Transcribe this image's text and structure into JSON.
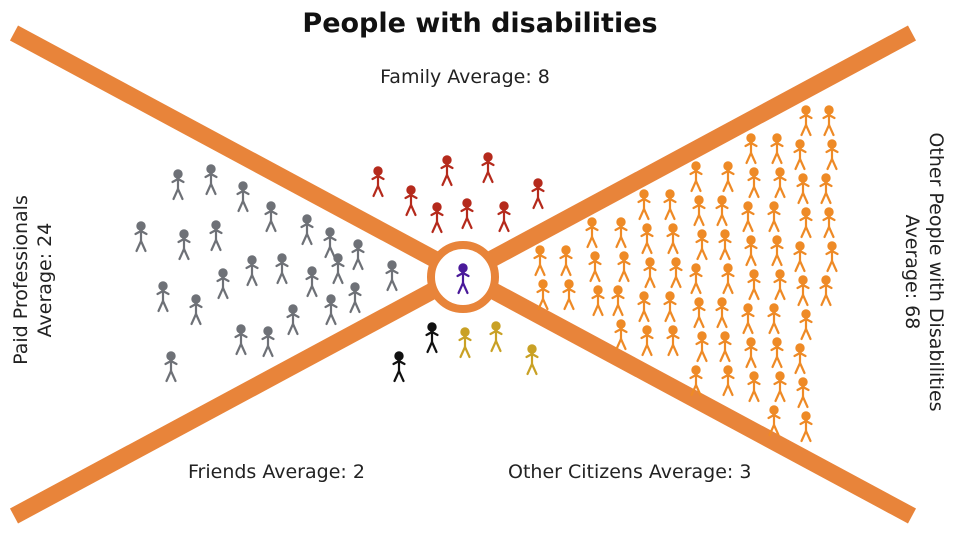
{
  "title": "People with disabilities",
  "labels": {
    "family": "Family Average: 8",
    "friends": "Friends Average: 2",
    "citizens": "Other Citizens Average: 3",
    "paid_line1": "Paid Professionals",
    "paid_line2": "Average: 24",
    "others_line1": "Other People with Disabilities",
    "others_line2": "Average: 68"
  },
  "colors": {
    "band": "#e8843a",
    "center_person": "#4a1a9a",
    "paid": "#6e7177",
    "family": "#b52a1c",
    "friends": "#111111",
    "citizens": "#c9a125",
    "others": "#ee8a26"
  },
  "groups": {
    "family": 8,
    "friends": 2,
    "citizens": 3,
    "paid": 24,
    "others": 68
  }
}
